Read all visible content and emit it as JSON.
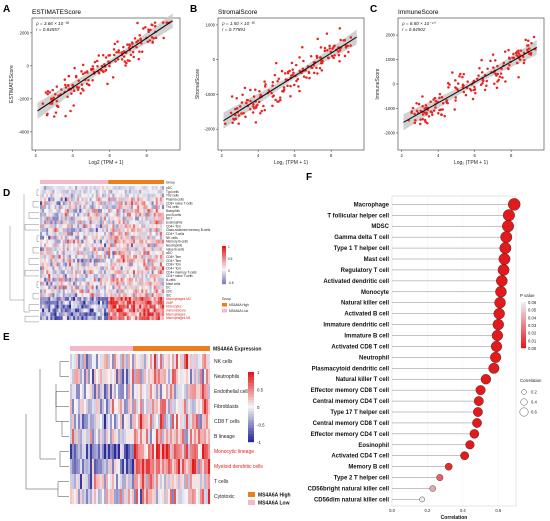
{
  "colors": {
    "point_red": "#e8231f",
    "fit_line": "#111111",
    "ci_band": "#c9c9c9",
    "high": "#ef7d1a",
    "low": "#f4b8c8",
    "heat_high": "#e31a1c",
    "heat_low": "#2b2b9a",
    "heat_mid": "#f5f5f5"
  },
  "panels": {
    "A": "A",
    "B": "B",
    "C": "C",
    "D": "D",
    "E": "E",
    "F": "F"
  },
  "chart_data": [
    {
      "panel": "A",
      "type": "scatter",
      "title": "ESTIMATEScore",
      "xlabel": "Log2 (TPM + 1)",
      "ylabel": "ESTIMATEScore",
      "stat_p": "ρ = 3.66 × 10⁻³⁸",
      "stat_r": "r = 0.84557",
      "xlim": [
        1.8,
        9.8
      ],
      "ylim": [
        -5100,
        2900
      ],
      "xticks": [
        2,
        4,
        6,
        8
      ],
      "yticks": [
        -4000,
        -2000,
        0,
        2000
      ],
      "trend": {
        "slope": 748.2,
        "intercept": -4300
      },
      "seed": 11,
      "n": 170,
      "noise": 680
    },
    {
      "panel": "B",
      "type": "scatter",
      "title": "StromalScore",
      "xlabel": "Log₂ (TPM + 1)",
      "ylabel": "StromalScore",
      "stat_p": "ρ = 1.50 × 10⁻³⁵",
      "stat_r": "r = 0.77891",
      "xlim": [
        1.8,
        9.8
      ],
      "ylim": [
        -2600,
        1200
      ],
      "xticks": [
        2,
        4,
        6,
        8
      ],
      "yticks": [
        -2000,
        -1000,
        0,
        1000
      ],
      "trend": {
        "slope": 330,
        "intercept": -2450
      },
      "seed": 23,
      "n": 170,
      "noise": 390
    },
    {
      "panel": "C",
      "type": "scatter",
      "title": "ImmuneScore",
      "xlabel": "Log₂ (TPM + 1)",
      "ylabel": "ImmuneScore",
      "stat_p": "ρ = 8.80 × 10⁻⁴⁰",
      "stat_r": "r = 0.84902",
      "xlim": [
        1.8,
        9.8
      ],
      "ylim": [
        -2700,
        2700
      ],
      "xticks": [
        2,
        4,
        6,
        8
      ],
      "yticks": [
        -2000,
        -1000,
        0,
        1000,
        2000
      ],
      "trend": {
        "slope": 420,
        "intercept": -2450
      },
      "seed": 37,
      "n": 170,
      "noise": 470
    },
    {
      "panel": "D",
      "type": "heatmap",
      "group_label": "Group",
      "legend_title": "Group",
      "legend_high": "MS4A6A High",
      "legend_low": "MS4A6A Low",
      "scale_ticks": [
        "1",
        "0.5",
        "0",
        "-0.5"
      ],
      "rows": [
        {
          "label": "pDC",
          "red": false
        },
        {
          "label": "Tgd cells",
          "red": false
        },
        {
          "label": "Th2 cells",
          "red": false
        },
        {
          "label": "Plasma cells",
          "red": false
        },
        {
          "label": "CD8+ naive T-cells",
          "red": false
        },
        {
          "label": "Th1 cells",
          "red": false
        },
        {
          "label": "Basophils",
          "red": false
        },
        {
          "label": "pro B-cells",
          "red": false
        },
        {
          "label": "NKT",
          "red": false
        },
        {
          "label": "Eosinophils",
          "red": false
        },
        {
          "label": "CD4+ Tcm",
          "red": false
        },
        {
          "label": "Class-switched memory B-cells",
          "red": false
        },
        {
          "label": "CD4+ T-cells",
          "red": false
        },
        {
          "label": "NK cells",
          "red": false
        },
        {
          "label": "Memory B-cells",
          "red": false
        },
        {
          "label": "Neutrophils",
          "red": false
        },
        {
          "label": "naive B-cells",
          "red": false
        },
        {
          "label": "aDC",
          "red": false
        },
        {
          "label": "CD8+ Tem",
          "red": false
        },
        {
          "label": "CD4+ Tem",
          "red": false
        },
        {
          "label": "CD8+ Tcm",
          "red": false
        },
        {
          "label": "CD4+ Tcm",
          "red": false
        },
        {
          "label": "CD4+ memory T-cells",
          "red": false
        },
        {
          "label": "CD4+ naive T-cells",
          "red": false
        },
        {
          "label": "B-cells",
          "red": false
        },
        {
          "label": "Mast cells",
          "red": false
        },
        {
          "label": "DC",
          "red": false
        },
        {
          "label": "cDC",
          "red": false
        },
        {
          "label": "iDC",
          "red": false
        },
        {
          "label": "Macrophages M2",
          "red": true
        },
        {
          "label": "GMP",
          "red": true
        },
        {
          "label": "Monocytes",
          "red": true
        },
        {
          "label": "ImmuneScore",
          "red": true
        },
        {
          "label": "Macrophages",
          "red": true
        },
        {
          "label": "Macrophages M1",
          "red": true
        }
      ]
    },
    {
      "panel": "E",
      "type": "heatmap",
      "title": "MS4A6A Expression",
      "legend_high": "MS4A6A High",
      "legend_low": "MS4A6A Low",
      "scale_ticks": [
        "1",
        "0.5",
        "0",
        "-0.5",
        "-1"
      ],
      "rows": [
        {
          "label": "NK cells",
          "red": false
        },
        {
          "label": "Neutrophils",
          "red": false
        },
        {
          "label": "Endothelial cells",
          "red": false
        },
        {
          "label": "Fibroblasts",
          "red": false
        },
        {
          "label": "CD8 T cells",
          "red": false
        },
        {
          "label": "B lineage",
          "red": false
        },
        {
          "label": "Monocytic lineage",
          "red": true
        },
        {
          "label": "Myeloid dendritic cells",
          "red": true
        },
        {
          "label": "T cells",
          "red": false
        },
        {
          "label": "Cytotoxic",
          "red": false
        }
      ]
    },
    {
      "panel": "F",
      "type": "scatter",
      "xlabel": "Correlation",
      "xlim": [
        0,
        0.7
      ],
      "xticks": [
        "0.0",
        "0.2",
        "0.4",
        "0.6"
      ],
      "legend_p_title": "P value",
      "legend_p_ticks": [
        "0.06",
        "0.05",
        "0.04",
        "0.03",
        "0.02",
        "0.01",
        "0.00"
      ],
      "legend_size_title": "Correlation",
      "legend_size_ticks": [
        "0.2",
        "0.4",
        "0.6"
      ],
      "categories": [
        "Macrophage",
        "T follicular helper cell",
        "MDSC",
        "Gamma delta T cell",
        "Type 1 T helper cell",
        "Mast cell",
        "Regulatory T cell",
        "Activated dendritic cell",
        "Monocyte",
        "Natural killer cell",
        "Activated B cell",
        "Immature dendritic cell",
        "Immature  B cell",
        "Activated CD8 T cell",
        "Neutrophil",
        "Plasmacytoid dendritic cell",
        "Natural killer T cell",
        "Effector memory CD8 T cell",
        "Central memory CD4 T cell",
        "Type 17 T helper cell",
        "Central memory CD8 T cell",
        "Effector memory CD4 T cell",
        "Eosinophil",
        "Activated CD4 T cell",
        "Memory B cell",
        "Type 2 T helper cell",
        "CD56bright natural killer cell",
        "CD56dim natural killer cell"
      ],
      "values": [
        0.69,
        0.66,
        0.655,
        0.645,
        0.64,
        0.635,
        0.63,
        0.62,
        0.615,
        0.61,
        0.605,
        0.6,
        0.595,
        0.59,
        0.585,
        0.575,
        0.53,
        0.5,
        0.49,
        0.485,
        0.48,
        0.465,
        0.44,
        0.41,
        0.32,
        0.27,
        0.23,
        0.17
      ],
      "pvalues": [
        0,
        0,
        0,
        0,
        0,
        0,
        0,
        0,
        0,
        0,
        0,
        0,
        0,
        0,
        0,
        0,
        0,
        0,
        0,
        0,
        0,
        0,
        0,
        0,
        0.005,
        0.02,
        0.04,
        0.06
      ]
    }
  ]
}
